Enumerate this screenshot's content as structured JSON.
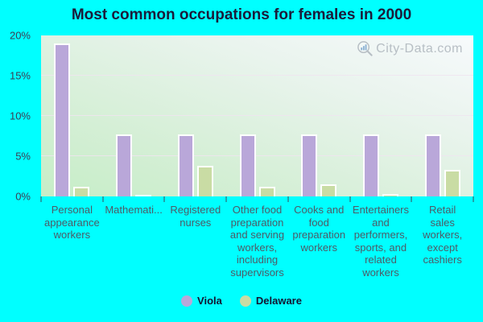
{
  "title": "Most common occupations for females in 2000",
  "watermark": {
    "text": "City-Data.com",
    "icon": "magnifier-chart-icon"
  },
  "colors": {
    "background": "#00ffff",
    "viola_bar": "#b9a7d9",
    "delaware_bar": "#c9dca4",
    "bar_border": "#ffffff",
    "title_text": "#1b1b3a",
    "axis_text": "#4e5a66",
    "watermark_text": "#a4acb4"
  },
  "chart_data": {
    "type": "bar",
    "title": "Most common occupations for females in 2000",
    "categories": [
      "Personal appearance workers",
      "Mathemati...",
      "Registered nurses",
      "Other food preparation and serving workers, including supervisors",
      "Cooks and food preparation workers",
      "Entertainers and performers, sports, and related workers",
      "Retail sales workers, except cashiers"
    ],
    "categories_wrapped": [
      [
        "Personal",
        "appearance",
        "workers"
      ],
      [
        "Mathemati..."
      ],
      [
        "Registered",
        "nurses"
      ],
      [
        "Other food",
        "preparation",
        "and serving",
        "workers,",
        "including",
        "supervisors"
      ],
      [
        "Cooks and",
        "food",
        "preparation",
        "workers"
      ],
      [
        "Entertainers",
        "and",
        "performers,",
        "sports, and",
        "related",
        "workers"
      ],
      [
        "Retail",
        "sales",
        "workers,",
        "except",
        "cashiers"
      ]
    ],
    "series": [
      {
        "name": "Viola",
        "color": "#b9a7d9",
        "values": [
          19,
          7.7,
          7.7,
          7.7,
          7.7,
          7.7,
          7.7
        ]
      },
      {
        "name": "Delaware",
        "color": "#c9dca4",
        "values": [
          1.2,
          0.2,
          3.8,
          1.2,
          1.5,
          0.3,
          3.3
        ]
      }
    ],
    "xlabel": "",
    "ylabel": "",
    "ylim": [
      0,
      20
    ],
    "yticks": [
      0,
      5,
      10,
      15,
      20
    ],
    "ytick_labels": [
      "0%",
      "5%",
      "10%",
      "15%",
      "20%"
    ],
    "grid": true,
    "legend_position": "bottom"
  },
  "legend": {
    "items": [
      {
        "label": "Viola",
        "color": "#b9a7d9"
      },
      {
        "label": "Delaware",
        "color": "#c9dca4"
      }
    ]
  }
}
